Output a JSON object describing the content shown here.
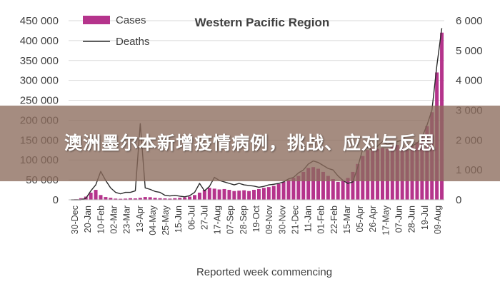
{
  "chart_data": {
    "type": "bar",
    "title": "Western Pacific Region",
    "xlabel": "Reported week commencing",
    "ylabel": "",
    "y2label": "",
    "ylim": [
      0,
      450000
    ],
    "y2lim": [
      0,
      6000
    ],
    "yticks": [
      "0",
      "50 000",
      "100 000",
      "150 000",
      "200 000",
      "250 000",
      "300 000",
      "350 000",
      "400 000",
      "450 000"
    ],
    "y2ticks": [
      "0",
      "1 000",
      "2 000",
      "3 000",
      "4 000",
      "5 000",
      "6 000"
    ],
    "xtick_labels": [
      "30-Dec",
      "20-Jan",
      "10-Feb",
      "02-Mar",
      "23-Mar",
      "13-Apr",
      "04-May",
      "25-May",
      "15-Jun",
      "06-Jul",
      "27-Jul",
      "17-Aug",
      "07-Sep",
      "28-Sep",
      "19-Oct",
      "09-Nov",
      "30-Nov",
      "21-Dec",
      "11-Jan",
      "01-Feb",
      "22-Feb",
      "15-Mar",
      "05-Apr",
      "26-Apr",
      "17-May",
      "07-Jun",
      "28-Jun",
      "19-Jul",
      "09-Aug"
    ],
    "grid": true,
    "legend_position": "top-left",
    "series": [
      {
        "name": "Cases",
        "type": "bar",
        "axis": "left",
        "color": "#b5348c",
        "values": [
          500,
          1500,
          4000,
          8000,
          18000,
          25000,
          12000,
          7000,
          5000,
          3000,
          2500,
          3000,
          4000,
          3500,
          5000,
          7000,
          6500,
          5000,
          4000,
          3500,
          3000,
          4000,
          5000,
          6000,
          8000,
          12000,
          18000,
          25000,
          30000,
          28000,
          26000,
          27000,
          25000,
          22000,
          23000,
          24000,
          22000,
          25000,
          27000,
          30000,
          32000,
          35000,
          40000,
          45000,
          50000,
          55000,
          60000,
          70000,
          80000,
          82000,
          78000,
          70000,
          60000,
          52000,
          45000,
          48000,
          55000,
          70000,
          90000,
          110000,
          125000,
          130000,
          128000,
          130000,
          128000,
          135000,
          138000,
          130000,
          125000,
          135000,
          145000,
          160000,
          185000,
          220000,
          320000,
          420000
        ]
      },
      {
        "name": "Deaths",
        "type": "line",
        "axis": "right",
        "color": "#2b2b2b",
        "values": [
          0,
          0,
          0,
          50,
          300,
          500,
          950,
          650,
          400,
          250,
          200,
          250,
          250,
          300,
          2550,
          400,
          350,
          280,
          250,
          150,
          130,
          150,
          120,
          100,
          140,
          250,
          550,
          300,
          450,
          750,
          650,
          600,
          550,
          500,
          550,
          500,
          480,
          460,
          420,
          450,
          500,
          520,
          550,
          600,
          700,
          750,
          900,
          1000,
          1200,
          1300,
          1250,
          1150,
          1050,
          1000,
          800,
          650,
          550,
          600,
          1100,
          1700,
          1750,
          1650,
          1800,
          1950,
          1850,
          1900,
          1950,
          2000,
          1850,
          1800,
          1900,
          2100,
          2500,
          3000,
          4500,
          5750
        ]
      }
    ]
  },
  "overlay": {
    "headline": "澳洲墨尔本新增疫情病例，挑战、应对与反思"
  }
}
